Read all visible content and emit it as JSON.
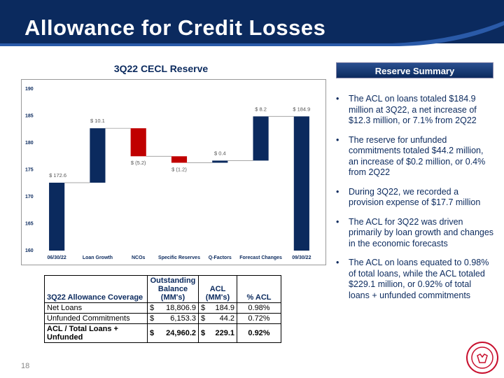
{
  "header": {
    "title": "Allowance for Credit Losses"
  },
  "chart_data": {
    "type": "waterfall",
    "title": "3Q22 CECL Reserve",
    "categories": [
      "06/30/22",
      "Loan Growth",
      "NCOs",
      "Specific Reserves",
      "Q-Factors",
      "Forecast Changes",
      "09/30/22"
    ],
    "values": [
      172.6,
      10.1,
      -5.2,
      -1.2,
      0.4,
      8.2,
      184.9
    ],
    "value_labels": [
      "$ 172.6",
      "$ 10.1",
      "$ (5.2)",
      "$ (1.2)",
      "$ 0.4",
      "$ 8.2",
      "$ 184.9"
    ],
    "totals": [
      true,
      false,
      false,
      false,
      false,
      false,
      true
    ],
    "total_color": "#0b2a5e",
    "increase_color": "#0b2a5e",
    "decrease_color": "#c00000",
    "ylim": [
      160,
      190
    ],
    "yticks": [
      160,
      165,
      170,
      175,
      180,
      185,
      190
    ],
    "grid": false
  },
  "sidebar": {
    "heading": "Reserve Summary",
    "bullets": [
      "The ACL on loans totaled $184.9 million at 3Q22, a net increase of $12.3 million, or 7.1% from 2Q22",
      "The reserve for unfunded commitments totaled $44.2 million, an increase of $0.2 million, or 0.4% from 2Q22",
      "During 3Q22, we recorded a provision expense of $17.7 million",
      "The ACL for 3Q22 was driven primarily by loan growth and changes in the economic forecasts",
      "The ACL on loans equated to 0.98% of total loans, while the ACL totaled $229.1 million, or 0.92% of total loans + unfunded commitments"
    ]
  },
  "table": {
    "header": [
      "3Q22 Allowance Coverage",
      "Outstanding Balance (MM's)",
      "ACL (MM's)",
      "% ACL"
    ],
    "rows": [
      [
        "Net Loans",
        "$",
        "18,806.9",
        "$",
        "184.9",
        "0.98%"
      ],
      [
        "Unfunded Commitments",
        "$",
        "6,153.3",
        "$",
        "44.2",
        "0.72%"
      ],
      [
        "ACL / Total Loans + Unfunded",
        "$",
        "24,960.2",
        "$",
        "229.1",
        "0.92%"
      ]
    ]
  },
  "footer": {
    "page": "18"
  }
}
